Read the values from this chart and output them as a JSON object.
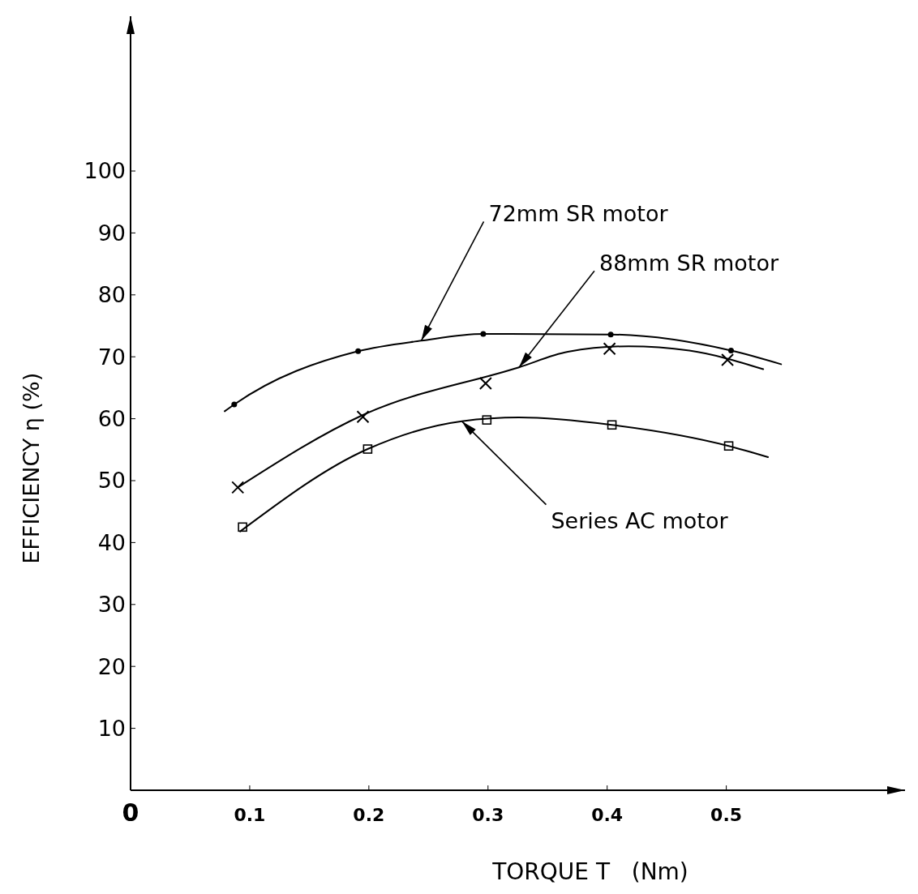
{
  "chart_data": {
    "type": "line",
    "xlabel": "TORQUE T   (Nm)",
    "ylabel": "EFFICIENCY η (%)",
    "xlim": [
      0,
      0.65
    ],
    "ylim": [
      0,
      125
    ],
    "xticks": [
      0,
      0.1,
      0.2,
      0.3,
      0.4,
      0.5
    ],
    "yticks": [
      10,
      20,
      30,
      40,
      50,
      60,
      70,
      80,
      90,
      100
    ],
    "grid": false,
    "marker": "none",
    "line_style": "solid",
    "series": [
      {
        "color": "#000000",
        "x": [
          0.079,
          0.087,
          0.191,
          0.244,
          0.296,
          0.403,
          0.504,
          0.546
        ],
        "values": [
          61.2,
          62.3,
          70.9,
          72.6,
          73.7,
          73.6,
          71.0,
          68.8
        ]
      },
      {
        "color": "#000000",
        "x": [
          0.09,
          0.195,
          0.326,
          0.367,
          0.418,
          0.469,
          0.531
        ],
        "values": [
          48.9,
          60.6,
          68.3,
          70.8,
          71.7,
          71.0,
          68.0
        ]
      },
      {
        "color": "#000000",
        "x": [
          0.092,
          0.199,
          0.278,
          0.326,
          0.404,
          0.502,
          0.535
        ],
        "values": [
          41.8,
          55.1,
          59.6,
          60.2,
          59.0,
          55.6,
          53.8
        ]
      },
      {
        "type": "scatter",
        "color": "#000000",
        "marker": "circle",
        "x": [
          0.087,
          0.191,
          0.296,
          0.403,
          0.504
        ],
        "values": [
          62.3,
          70.9,
          73.7,
          73.6,
          71.0
        ]
      },
      {
        "type": "scatter",
        "color": "#000000",
        "marker": "cross",
        "x": [
          0.09,
          0.195,
          0.298,
          0.402,
          0.501
        ],
        "values": [
          48.9,
          60.3,
          65.7,
          71.3,
          69.5
        ]
      },
      {
        "type": "scatter",
        "color": "#000000",
        "marker": "square",
        "x": [
          0.094,
          0.199,
          0.299,
          0.404,
          0.502
        ],
        "values": [
          42.5,
          55.1,
          59.8,
          59.0,
          55.6
        ]
      }
    ],
    "annotations": [
      {
        "text": "72mm SR motor",
        "x": 0.244,
        "y": 72.6
      },
      {
        "text": "88mm SR motor",
        "x": 0.326,
        "y": 68.3
      },
      {
        "text": "Series AC motor",
        "x": 0.278,
        "y": 59.6
      }
    ]
  }
}
